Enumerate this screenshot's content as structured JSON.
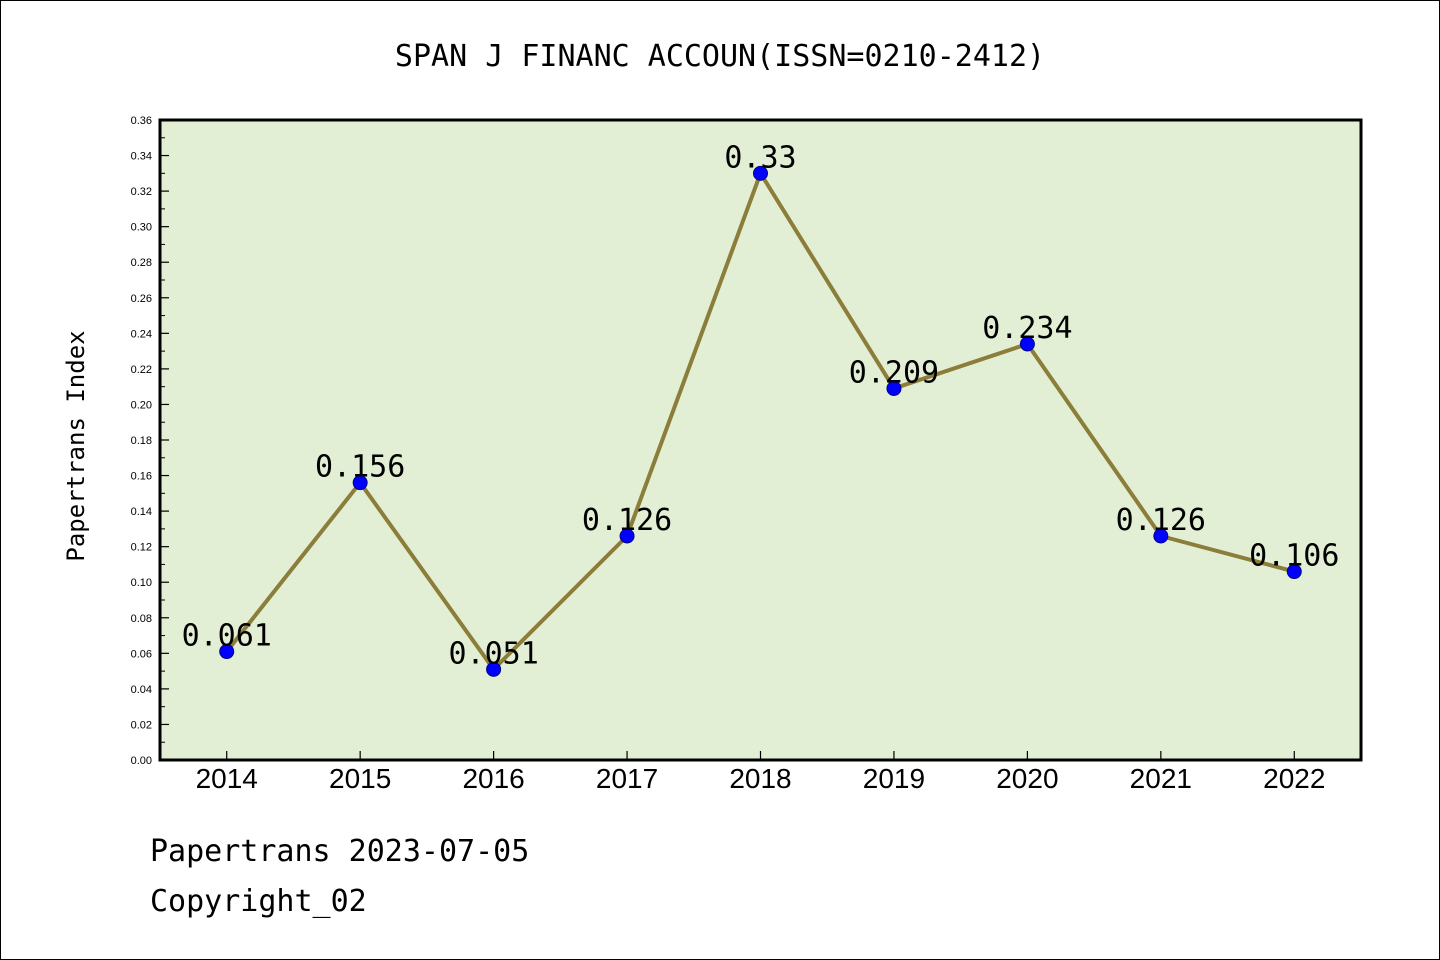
{
  "chart_data": {
    "type": "line",
    "title": "SPAN J FINANC ACCOUN(ISSN=0210-2412)",
    "xlabel": "",
    "ylabel": "Papertrans Index",
    "categories": [
      "2014",
      "2015",
      "2016",
      "2017",
      "2018",
      "2019",
      "2020",
      "2021",
      "2022"
    ],
    "series": [
      {
        "values": [
          0.061,
          0.156,
          0.051,
          0.126,
          0.33,
          0.209,
          0.234,
          0.126,
          0.106
        ],
        "data_labels": [
          "0.061",
          "0.156",
          "0.051",
          "0.126",
          "0.33",
          "0.209",
          "0.234",
          "0.126",
          "0.106"
        ]
      }
    ],
    "ylim": [
      0,
      0.36
    ],
    "yticks": [
      "0.00",
      "0.02",
      "0.04",
      "0.06",
      "0.08",
      "0.10",
      "0.12",
      "0.14",
      "0.16",
      "0.18",
      "0.20",
      "0.22",
      "0.24",
      "0.26",
      "0.28",
      "0.30",
      "0.32",
      "0.34",
      "0.36"
    ],
    "grid": false,
    "legend": "none",
    "colors": {
      "plot_background": "#e2efd4",
      "line": "#8b7d3a",
      "marker": "#0000ff"
    }
  },
  "footer": {
    "date_line": "Papertrans 2023-07-05",
    "copyright_line": "Copyright_02"
  }
}
